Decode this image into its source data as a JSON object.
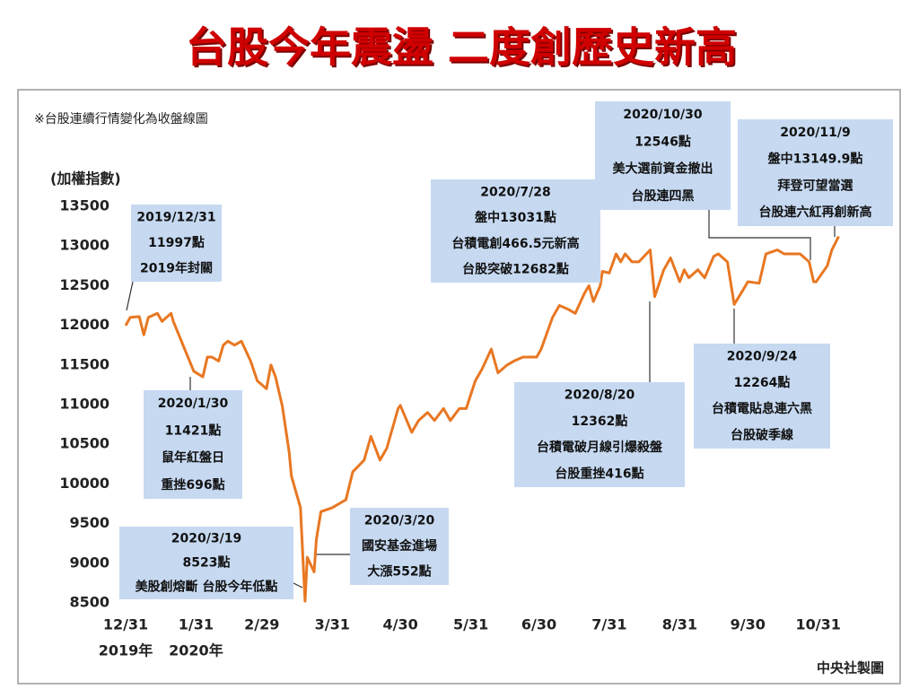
{
  "chart_data": {
    "type": "line",
    "title": "台股今年震盪 二度創歷史新高",
    "note": "※台股連續行情變化為收盤線圖",
    "y_label": "(加權指數)",
    "source": "中央社製圖",
    "x_year_labels": [
      "2019年",
      "2020年"
    ],
    "xlim": [
      "2019-12-31",
      "2020-11-10"
    ],
    "xticks": [
      {
        "value": "2019-12-31",
        "label": "12/31"
      },
      {
        "value": "2020-01-31",
        "label": "1/31"
      },
      {
        "value": "2020-02-29",
        "label": "2/29"
      },
      {
        "value": "2020-03-31",
        "label": "3/31"
      },
      {
        "value": "2020-04-30",
        "label": "4/30"
      },
      {
        "value": "2020-05-31",
        "label": "5/31"
      },
      {
        "value": "2020-06-30",
        "label": "6/30"
      },
      {
        "value": "2020-07-31",
        "label": "7/31"
      },
      {
        "value": "2020-08-31",
        "label": "8/31"
      },
      {
        "value": "2020-09-30",
        "label": "9/30"
      },
      {
        "value": "2020-10-31",
        "label": "10/31"
      }
    ],
    "ylim": [
      8500,
      13500
    ],
    "yticks": [
      8500,
      9000,
      9500,
      10000,
      10500,
      11000,
      11500,
      12000,
      12500,
      13000,
      13500
    ],
    "x": [
      "2019-12-31",
      "2020-01-02",
      "2020-01-06",
      "2020-01-08",
      "2020-01-10",
      "2020-01-14",
      "2020-01-16",
      "2020-01-20",
      "2020-01-21",
      "2020-01-30",
      "2020-02-03",
      "2020-02-05",
      "2020-02-07",
      "2020-02-10",
      "2020-02-12",
      "2020-02-14",
      "2020-02-17",
      "2020-02-20",
      "2020-02-24",
      "2020-02-27",
      "2020-03-02",
      "2020-03-04",
      "2020-03-06",
      "2020-03-09",
      "2020-03-12",
      "2020-03-13",
      "2020-03-16",
      "2020-03-17",
      "2020-03-19",
      "2020-03-20",
      "2020-03-23",
      "2020-03-24",
      "2020-03-26",
      "2020-03-31",
      "2020-04-06",
      "2020-04-09",
      "2020-04-14",
      "2020-04-17",
      "2020-04-21",
      "2020-04-24",
      "2020-04-29",
      "2020-04-30",
      "2020-05-05",
      "2020-05-08",
      "2020-05-12",
      "2020-05-15",
      "2020-05-19",
      "2020-05-22",
      "2020-05-26",
      "2020-05-29",
      "2020-06-02",
      "2020-06-05",
      "2020-06-09",
      "2020-06-12",
      "2020-06-16",
      "2020-06-19",
      "2020-06-23",
      "2020-06-29",
      "2020-07-01",
      "2020-07-06",
      "2020-07-09",
      "2020-07-13",
      "2020-07-16",
      "2020-07-20",
      "2020-07-22",
      "2020-07-24",
      "2020-07-27",
      "2020-07-28",
      "2020-07-31",
      "2020-08-03",
      "2020-08-05",
      "2020-08-07",
      "2020-08-10",
      "2020-08-13",
      "2020-08-18",
      "2020-08-20",
      "2020-08-24",
      "2020-08-27",
      "2020-08-31",
      "2020-09-02",
      "2020-09-04",
      "2020-09-08",
      "2020-09-11",
      "2020-09-15",
      "2020-09-17",
      "2020-09-21",
      "2020-09-24",
      "2020-09-28",
      "2020-09-30",
      "2020-10-05",
      "2020-10-08",
      "2020-10-13",
      "2020-10-16",
      "2020-10-20",
      "2020-10-23",
      "2020-10-27",
      "2020-10-29",
      "2020-10-30",
      "2020-11-04",
      "2020-11-06",
      "2020-11-09"
    ],
    "series": [
      {
        "color": "#e87722",
        "values": [
          11997,
          12100,
          12110,
          11880,
          12100,
          12150,
          12050,
          12150,
          12050,
          11421,
          11350,
          11600,
          11600,
          11550,
          11750,
          11800,
          11750,
          11800,
          11550,
          11300,
          11200,
          11500,
          11350,
          10980,
          10400,
          10100,
          9800,
          9700,
          8523,
          9075,
          8890,
          9300,
          9650,
          9700,
          9800,
          10150,
          10300,
          10600,
          10300,
          10450,
          10950,
          10990,
          10650,
          10800,
          10900,
          10800,
          10950,
          10800,
          10950,
          10950,
          11300,
          11450,
          11700,
          11400,
          11500,
          11550,
          11600,
          11600,
          11700,
          12100,
          12250,
          12200,
          12150,
          12400,
          12500,
          12300,
          12500,
          12680,
          12660,
          12900,
          12800,
          12900,
          12800,
          12800,
          12950,
          12362,
          12700,
          12850,
          12550,
          12700,
          12600,
          12700,
          12600,
          12870,
          12900,
          12800,
          12264,
          12450,
          12550,
          12530,
          12900,
          12950,
          12900,
          12900,
          12900,
          12800,
          12550,
          12546,
          12750,
          12950,
          13120
        ]
      }
    ],
    "annotations": [
      {
        "lines": [
          "2019/12/31",
          "11997點",
          "2019年封關"
        ]
      },
      {
        "lines": [
          "2020/1/30",
          "11421點",
          "鼠年紅盤日",
          "重挫696點"
        ]
      },
      {
        "lines": [
          "2020/3/19",
          "8523點",
          "美股創熔斷 台股今年低點"
        ]
      },
      {
        "lines": [
          "2020/3/20",
          "國安基金進場",
          "大漲552點"
        ]
      },
      {
        "lines": [
          "2020/7/28",
          "盤中13031點",
          "台積電創466.5元新高",
          "台股突破12682點"
        ]
      },
      {
        "lines": [
          "2020/8/20",
          "12362點",
          "台積電破月線引爆殺盤",
          "台股重挫416點"
        ]
      },
      {
        "lines": [
          "2020/9/24",
          "12264點",
          "台積電貼息連六黑",
          "台股破季線"
        ]
      },
      {
        "lines": [
          "2020/10/30",
          "12546點",
          "美大選前資金撤出",
          "台股連四黑"
        ]
      },
      {
        "lines": [
          "2020/11/9",
          "盤中13149.9點",
          "拜登可望當選",
          "台股連六紅再創新高"
        ]
      }
    ]
  }
}
